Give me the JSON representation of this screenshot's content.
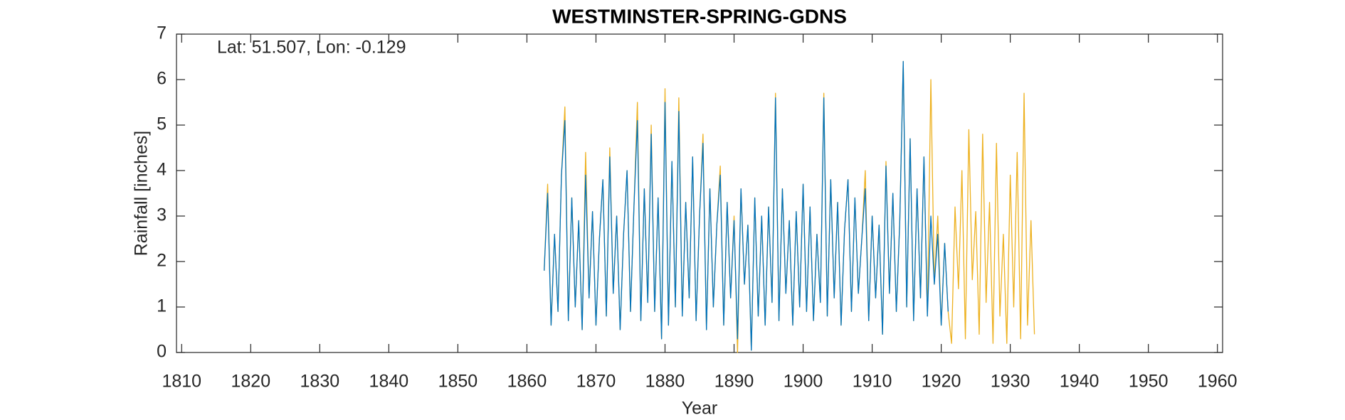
{
  "chart_data": {
    "type": "line",
    "title": "WESTMINSTER-SPRING-GDNS",
    "annotation": "Lat: 51.507, Lon: -0.129",
    "x_label": "Year",
    "y_label": "Rainfall [inches]",
    "xlim": [
      1809.25,
      1960.75
    ],
    "xticks": [
      1810,
      1820,
      1830,
      1840,
      1850,
      1860,
      1870,
      1880,
      1890,
      1900,
      1910,
      1920,
      1930,
      1940,
      1950,
      1960
    ],
    "ylim": [
      0,
      7
    ],
    "yticks": [
      0,
      1,
      2,
      3,
      4,
      5,
      6,
      7
    ],
    "x": [
      1862.5,
      1863,
      1863.5,
      1864,
      1864.5,
      1865,
      1865.5,
      1866,
      1866.5,
      1867,
      1867.5,
      1868,
      1868.5,
      1869,
      1869.5,
      1870,
      1870.5,
      1871,
      1871.5,
      1872,
      1872.5,
      1873,
      1873.5,
      1874,
      1874.5,
      1875,
      1875.5,
      1876,
      1876.5,
      1877,
      1877.5,
      1878,
      1878.5,
      1879,
      1879.5,
      1880,
      1880.5,
      1881,
      1881.5,
      1882,
      1882.5,
      1883,
      1883.5,
      1884,
      1884.5,
      1885,
      1885.5,
      1886,
      1886.5,
      1887,
      1887.5,
      1888,
      1888.5,
      1889,
      1889.5,
      1890,
      1890.5,
      1891,
      1891.5,
      1892,
      1892.5,
      1893,
      1893.5,
      1894,
      1894.5,
      1895,
      1895.5,
      1896,
      1896.5,
      1897,
      1897.5,
      1898,
      1898.5,
      1899,
      1899.5,
      1900,
      1900.5,
      1901,
      1901.5,
      1902,
      1902.5,
      1903,
      1903.5,
      1904,
      1904.5,
      1905,
      1905.5,
      1906,
      1906.5,
      1907,
      1907.5,
      1908,
      1908.5,
      1909,
      1909.5,
      1910,
      1910.5,
      1911,
      1911.5,
      1912,
      1912.5,
      1913,
      1913.5,
      1914,
      1914.5,
      1915,
      1915.5,
      1916,
      1916.5,
      1917,
      1917.5,
      1918,
      1918.5,
      1919,
      1919.5,
      1920,
      1920.5,
      1921,
      1921.5,
      1922,
      1922.5,
      1923,
      1923.5,
      1924,
      1924.5,
      1925,
      1925.5,
      1926,
      1926.5,
      1927,
      1927.5,
      1928,
      1928.5,
      1929,
      1929.5,
      1930,
      1930.5,
      1931,
      1931.5,
      1932,
      1932.5,
      1933,
      1933.5
    ],
    "series": [
      {
        "color": "#EDB120",
        "values": [
          1.8,
          3.7,
          0.6,
          2.6,
          0.9,
          3.9,
          5.4,
          0.7,
          3.4,
          1.0,
          2.9,
          0.5,
          4.4,
          1.2,
          3.1,
          0.6,
          2.5,
          3.8,
          0.8,
          4.5,
          1.3,
          3.0,
          0.5,
          2.6,
          4.0,
          0.9,
          3.2,
          5.5,
          0.7,
          3.6,
          1.1,
          5.0,
          0.9,
          3.4,
          0.3,
          5.8,
          0.6,
          4.2,
          1.0,
          5.6,
          0.8,
          3.3,
          1.2,
          4.3,
          0.7,
          3.0,
          4.8,
          0.5,
          3.6,
          1.0,
          2.8,
          4.1,
          0.6,
          3.3,
          1.2,
          3.0,
          0.0,
          3.6,
          1.5,
          2.8,
          0.05,
          3.4,
          0.8,
          3.0,
          0.6,
          3.2,
          1.1,
          5.7,
          0.7,
          3.6,
          1.3,
          2.9,
          0.6,
          3.1,
          1.0,
          3.7,
          0.9,
          3.2,
          0.7,
          2.6,
          1.1,
          5.7,
          0.8,
          3.8,
          1.2,
          3.3,
          0.6,
          2.7,
          3.8,
          0.9,
          3.4,
          1.3,
          2.5,
          4.0,
          0.7,
          3.0,
          1.2,
          2.8,
          0.4,
          4.2,
          1.3,
          3.5,
          0.9,
          2.9,
          6.4,
          1.0,
          4.7,
          0.7,
          3.6,
          1.2,
          4.3,
          0.8,
          6.0,
          1.5,
          3.0,
          0.6,
          2.4,
          0.9,
          0.2,
          3.2,
          1.4,
          4.0,
          0.3,
          4.9,
          1.6,
          3.1,
          0.4,
          4.8,
          1.1,
          3.3,
          0.2,
          4.6,
          0.8,
          2.6,
          0.2,
          3.9,
          1.0,
          4.4,
          0.3,
          5.7,
          0.6,
          2.9,
          0.4
        ]
      },
      {
        "color": "#0072BD",
        "values": [
          1.8,
          3.5,
          0.6,
          2.6,
          0.9,
          3.9,
          5.1,
          0.7,
          3.4,
          1.0,
          2.9,
          0.5,
          3.9,
          1.2,
          3.1,
          0.6,
          2.5,
          3.8,
          0.8,
          4.3,
          1.3,
          3.0,
          0.5,
          2.6,
          4.0,
          0.9,
          3.2,
          5.1,
          0.7,
          3.6,
          1.1,
          4.8,
          0.9,
          3.4,
          0.3,
          5.5,
          0.6,
          4.2,
          1.0,
          5.3,
          0.8,
          3.3,
          1.2,
          4.3,
          0.7,
          3.0,
          4.6,
          0.5,
          3.6,
          1.0,
          2.8,
          3.9,
          0.6,
          3.3,
          1.2,
          2.9,
          0.3,
          3.6,
          1.5,
          2.8,
          0.05,
          3.4,
          0.8,
          3.0,
          0.6,
          3.2,
          1.1,
          5.6,
          0.7,
          3.6,
          1.3,
          2.9,
          0.6,
          3.1,
          1.0,
          3.7,
          0.9,
          3.2,
          0.7,
          2.6,
          1.1,
          5.6,
          0.8,
          3.8,
          1.2,
          3.3,
          0.6,
          2.7,
          3.8,
          0.9,
          3.4,
          1.3,
          2.5,
          3.6,
          0.7,
          3.0,
          1.2,
          2.8,
          0.4,
          4.1,
          1.3,
          3.5,
          0.9,
          2.9,
          6.4,
          1.0,
          4.7,
          0.7,
          3.6,
          1.2,
          4.3,
          0.8,
          3.0,
          1.5,
          2.6,
          0.6,
          2.4,
          0.9,
          null,
          null,
          null,
          null,
          null,
          null,
          null,
          null,
          null,
          null,
          null,
          null,
          null,
          null,
          null,
          null,
          null,
          null,
          null,
          null,
          null,
          null,
          null,
          null,
          null
        ]
      }
    ]
  }
}
